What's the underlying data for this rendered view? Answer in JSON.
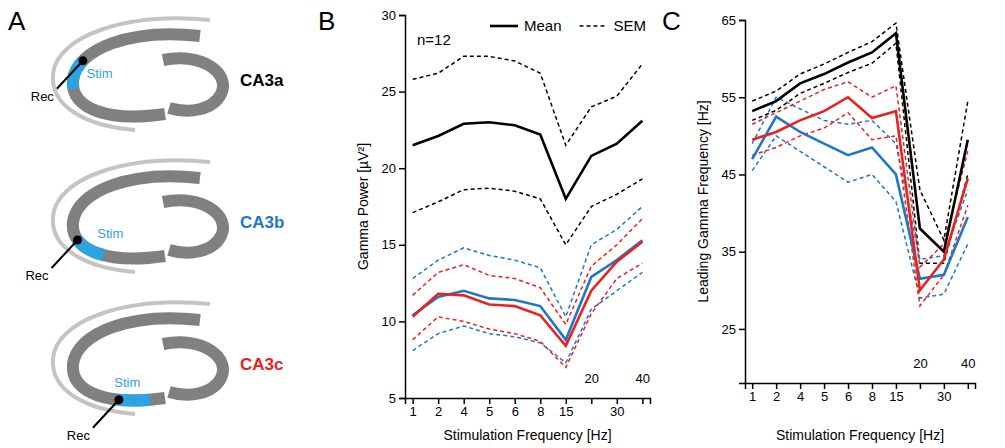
{
  "diagram": {
    "panel_label": "A",
    "items": [
      {
        "label": "CA3a",
        "color": "#000000",
        "stim": "Stim",
        "rec": "Rec"
      },
      {
        "label": "CA3b",
        "color": "#1f77c8",
        "stim": "Stim",
        "rec": "Rec"
      },
      {
        "label": "CA3c",
        "color": "#e8231f",
        "stim": "Stim",
        "rec": "Rec"
      }
    ]
  },
  "chart_data": [
    {
      "panel_label": "B",
      "type": "line",
      "x_label": "Stimulation Frequency [Hz]",
      "y_label": "Gamma Power [µV²]",
      "annotations": [
        "n=12"
      ],
      "categories": [
        "1",
        "2",
        "4",
        "5",
        "6",
        "8",
        "15",
        "20",
        "30",
        "40"
      ],
      "ylim": [
        5,
        30
      ],
      "yticks": [
        5,
        10,
        15,
        20,
        25,
        30
      ],
      "legend": "top-right",
      "legend_items": [
        {
          "label": "Mean",
          "line_style": "solid"
        },
        {
          "label": "SEM",
          "line_style": "dashed"
        }
      ],
      "series": [
        {
          "color": "#000000",
          "line_style": "solid",
          "values": [
            21.5,
            22.1,
            22.9,
            23.0,
            22.8,
            22.2,
            18.0,
            20.8,
            21.6,
            23.1
          ],
          "upper": [
            25.8,
            26.2,
            27.3,
            27.3,
            27.0,
            26.2,
            21.5,
            24.0,
            24.7,
            26.8
          ],
          "lower": [
            17.1,
            17.8,
            18.6,
            18.7,
            18.5,
            18.0,
            15.0,
            17.5,
            18.3,
            19.3
          ]
        },
        {
          "color": "#1f77c8",
          "line_style": "solid",
          "values": [
            10.4,
            11.6,
            12.0,
            11.5,
            11.4,
            11.0,
            8.8,
            12.9,
            14.0,
            15.3
          ],
          "upper": [
            12.8,
            14.0,
            14.8,
            14.3,
            14.0,
            13.5,
            10.3,
            15.0,
            16.0,
            17.5
          ],
          "lower": [
            8.1,
            9.2,
            9.7,
            9.2,
            9.0,
            8.6,
            7.3,
            10.8,
            12.0,
            13.2
          ]
        },
        {
          "color": "#e8231f",
          "line_style": "solid",
          "values": [
            10.3,
            11.8,
            11.7,
            11.1,
            11.0,
            10.4,
            8.4,
            12.0,
            13.9,
            15.2
          ],
          "upper": [
            11.7,
            13.2,
            13.7,
            13.0,
            12.8,
            12.2,
            9.8,
            13.6,
            15.0,
            16.7
          ],
          "lower": [
            8.8,
            10.3,
            10.0,
            9.5,
            9.2,
            8.7,
            7.0,
            10.5,
            12.8,
            13.8
          ]
        }
      ]
    },
    {
      "panel_label": "C",
      "type": "line",
      "x_label": "Stimulation Frequency [Hz]",
      "y_label": "Leading Gamma Frequency [Hz]",
      "categories": [
        "1",
        "2",
        "4",
        "5",
        "6",
        "8",
        "15",
        "20",
        "30",
        "40"
      ],
      "ylim": [
        18,
        65
      ],
      "yticks": [
        25,
        35,
        45,
        55,
        65
      ],
      "series": [
        {
          "color": "#000000",
          "line_style": "solid",
          "values": [
            53.2,
            54.5,
            56.8,
            58.0,
            59.5,
            60.8,
            63.3,
            38.0,
            35.0,
            49.5
          ],
          "upper": [
            54.5,
            55.8,
            58.0,
            59.3,
            60.8,
            62.2,
            64.6,
            43.0,
            36.5,
            54.5
          ],
          "lower": [
            52.0,
            53.3,
            55.5,
            56.8,
            58.2,
            59.4,
            62.0,
            33.5,
            33.5,
            45.0
          ]
        },
        {
          "color": "#1f77c8",
          "line_style": "solid",
          "values": [
            47.0,
            52.5,
            50.5,
            49.0,
            47.5,
            48.5,
            45.0,
            31.5,
            32.0,
            39.5
          ],
          "upper": [
            49.0,
            55.0,
            53.5,
            52.0,
            51.5,
            52.0,
            49.0,
            34.0,
            34.5,
            43.0
          ],
          "lower": [
            45.5,
            50.0,
            48.0,
            46.0,
            44.0,
            45.0,
            41.5,
            29.0,
            29.5,
            36.0
          ]
        },
        {
          "color": "#e8231f",
          "line_style": "solid",
          "values": [
            49.5,
            50.5,
            52.0,
            53.2,
            55.0,
            52.3,
            53.2,
            30.0,
            34.0,
            44.5
          ],
          "upper": [
            51.5,
            53.0,
            54.5,
            56.0,
            57.0,
            55.0,
            56.5,
            33.0,
            36.0,
            48.0
          ],
          "lower": [
            47.5,
            48.5,
            50.0,
            51.0,
            53.0,
            49.5,
            50.0,
            28.0,
            32.0,
            41.0
          ]
        }
      ]
    }
  ]
}
